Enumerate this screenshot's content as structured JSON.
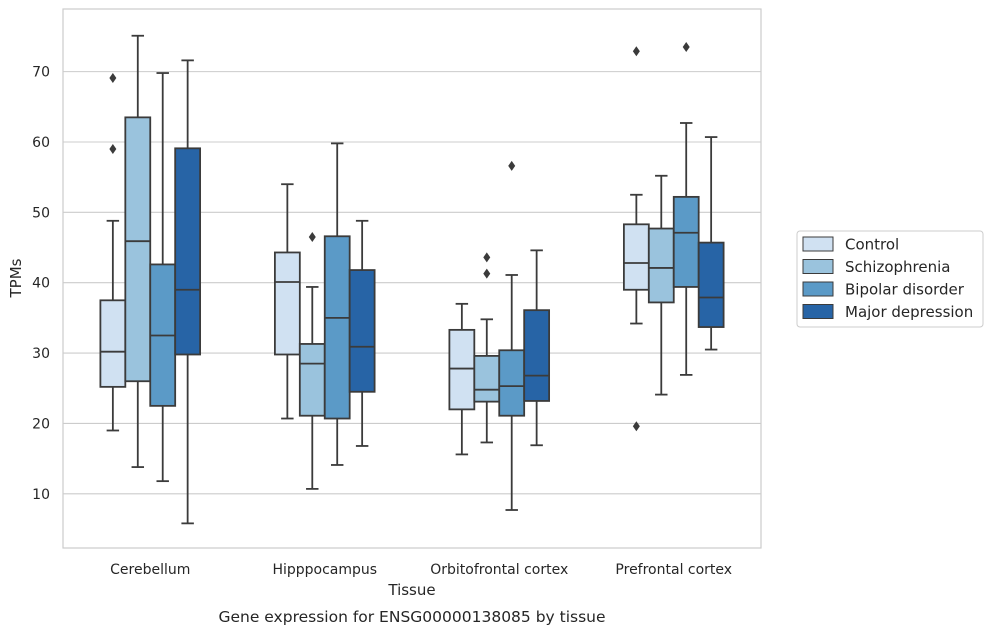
{
  "chart_data": {
    "type": "boxplot",
    "caption": "Gene expression for ENSG00000138085 by tissue",
    "xlabel": "Tissue",
    "ylabel": "TPMs",
    "ylim": [
      2.3,
      78.9
    ],
    "yticks": [
      10,
      20,
      30,
      40,
      50,
      60,
      70
    ],
    "grid": true,
    "legend_position": "right",
    "categories": [
      "Cerebellum",
      "Hipppocampus",
      "Orbitofrontal cortex",
      "Prefrontal cortex"
    ],
    "series": [
      {
        "name": "Control",
        "color": "#d0e1f2",
        "boxes": [
          {
            "whislo": 19.0,
            "q1": 25.2,
            "med": 30.2,
            "q3": 37.5,
            "whishi": 48.8,
            "fliers": [
              59.0,
              69.1
            ]
          },
          {
            "whislo": 20.7,
            "q1": 29.8,
            "med": 40.1,
            "q3": 44.3,
            "whishi": 54.0,
            "fliers": []
          },
          {
            "whislo": 15.6,
            "q1": 22.0,
            "med": 27.8,
            "q3": 33.3,
            "whishi": 37.0,
            "fliers": []
          },
          {
            "whislo": 34.2,
            "q1": 39.0,
            "med": 42.8,
            "q3": 48.3,
            "whishi": 52.5,
            "fliers": [
              19.6,
              72.9
            ]
          }
        ]
      },
      {
        "name": "Schizophrenia",
        "color": "#9ac3dd",
        "boxes": [
          {
            "whislo": 13.8,
            "q1": 26.0,
            "med": 45.9,
            "q3": 63.5,
            "whishi": 75.1,
            "fliers": []
          },
          {
            "whislo": 10.7,
            "q1": 21.1,
            "med": 28.5,
            "q3": 31.3,
            "whishi": 39.4,
            "fliers": [
              46.5
            ]
          },
          {
            "whislo": 17.3,
            "q1": 23.1,
            "med": 24.8,
            "q3": 29.6,
            "whishi": 34.8,
            "fliers": [
              41.3,
              43.6
            ]
          },
          {
            "whislo": 24.1,
            "q1": 37.2,
            "med": 42.1,
            "q3": 47.7,
            "whishi": 55.2,
            "fliers": []
          }
        ]
      },
      {
        "name": "Bipolar disorder",
        "color": "#5b9ac7",
        "boxes": [
          {
            "whislo": 11.8,
            "q1": 22.5,
            "med": 32.5,
            "q3": 42.6,
            "whishi": 69.8,
            "fliers": []
          },
          {
            "whislo": 14.1,
            "q1": 20.7,
            "med": 35.0,
            "q3": 46.6,
            "whishi": 59.8,
            "fliers": []
          },
          {
            "whislo": 7.7,
            "q1": 21.1,
            "med": 25.3,
            "q3": 30.4,
            "whishi": 41.1,
            "fliers": [
              56.6
            ]
          },
          {
            "whislo": 26.9,
            "q1": 39.4,
            "med": 47.1,
            "q3": 52.2,
            "whishi": 62.7,
            "fliers": [
              73.5
            ]
          }
        ]
      },
      {
        "name": "Major depression",
        "color": "#2764a6",
        "boxes": [
          {
            "whislo": 5.8,
            "q1": 29.8,
            "med": 39.0,
            "q3": 59.1,
            "whishi": 71.6,
            "fliers": []
          },
          {
            "whislo": 16.8,
            "q1": 24.5,
            "med": 30.9,
            "q3": 41.8,
            "whishi": 48.8,
            "fliers": []
          },
          {
            "whislo": 16.9,
            "q1": 23.2,
            "med": 26.8,
            "q3": 36.1,
            "whishi": 44.6,
            "fliers": []
          },
          {
            "whislo": 30.5,
            "q1": 33.7,
            "med": 37.9,
            "q3": 45.7,
            "whishi": 60.7,
            "fliers": []
          }
        ]
      }
    ]
  }
}
